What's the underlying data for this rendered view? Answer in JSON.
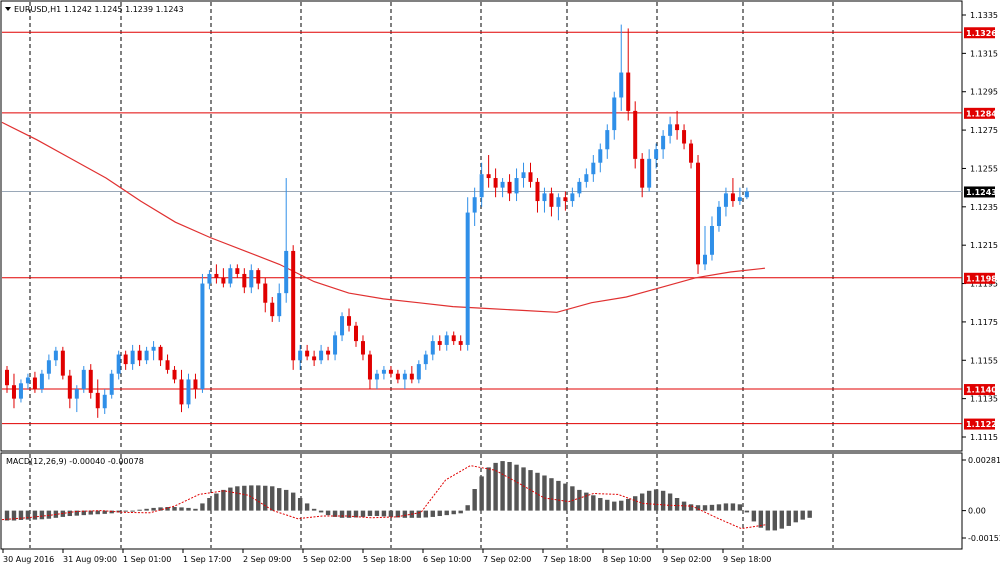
{
  "chart_data": [
    {
      "type": "candlestick",
      "header": {
        "symbol": "EURUSD,H1",
        "values": "1.1242 1.1245 1.1239 1.1243"
      },
      "ylim": [
        1.1108,
        1.1342
      ],
      "price_ticks": [
        "1.1335",
        "1.1315",
        "1.1295",
        "1.1275",
        "1.1255",
        "1.1235",
        "1.1215",
        "1.1195",
        "1.1175",
        "1.1155",
        "1.1135",
        "1.1115"
      ],
      "levels": [
        {
          "label": "1.1326",
          "value": 1.1326,
          "color": "#e00000",
          "style": "solid"
        },
        {
          "label": "1.1284",
          "value": 1.1284,
          "color": "#e00000",
          "style": "solid"
        },
        {
          "label": "1.1198",
          "value": 1.1198,
          "color": "#e00000",
          "style": "solid"
        },
        {
          "label": "1.1140",
          "value": 1.114,
          "color": "#e00000",
          "style": "solid"
        },
        {
          "label": "1.1122",
          "value": 1.1122,
          "color": "#e00000",
          "style": "solid"
        },
        {
          "label": "1.1243",
          "value": 1.1243,
          "color": "#000000",
          "style": "current"
        }
      ],
      "x_ticks": [
        "30 Aug 2016",
        "31 Aug 09:00",
        "1 Sep 01:00",
        "1 Sep 17:00",
        "2 Sep 09:00",
        "5 Sep 02:00",
        "5 Sep 18:00",
        "6 Sep 10:00",
        "7 Sep 02:00",
        "7 Sep 18:00",
        "8 Sep 10:00",
        "9 Sep 02:00",
        "9 Sep 18:00"
      ],
      "colors": {
        "bull": "#2f8fe8",
        "bear": "#e00000",
        "ma": "#e03030"
      },
      "ohlc": [
        [
          1.115,
          1.1152,
          1.1138,
          1.1142
        ],
        [
          1.1142,
          1.1148,
          1.113,
          1.1135
        ],
        [
          1.1135,
          1.1145,
          1.1133,
          1.1143
        ],
        [
          1.1143,
          1.1148,
          1.114,
          1.1146
        ],
        [
          1.1146,
          1.1149,
          1.1138,
          1.114
        ],
        [
          1.114,
          1.115,
          1.1138,
          1.1148
        ],
        [
          1.1148,
          1.1158,
          1.1145,
          1.1155
        ],
        [
          1.1155,
          1.1162,
          1.1152,
          1.116
        ],
        [
          1.116,
          1.1162,
          1.1145,
          1.1147
        ],
        [
          1.1147,
          1.115,
          1.113,
          1.1135
        ],
        [
          1.1135,
          1.1142,
          1.1128,
          1.114
        ],
        [
          1.114,
          1.1152,
          1.1138,
          1.115
        ],
        [
          1.115,
          1.1153,
          1.1135,
          1.1138
        ],
        [
          1.1138,
          1.1145,
          1.1125,
          1.113
        ],
        [
          1.113,
          1.114,
          1.1127,
          1.1137
        ],
        [
          1.1137,
          1.115,
          1.1135,
          1.1148
        ],
        [
          1.1148,
          1.116,
          1.1145,
          1.1158
        ],
        [
          1.1158,
          1.116,
          1.115,
          1.1153
        ],
        [
          1.1153,
          1.1163,
          1.115,
          1.116
        ],
        [
          1.116,
          1.1163,
          1.1152,
          1.1155
        ],
        [
          1.1155,
          1.1162,
          1.1153,
          1.116
        ],
        [
          1.116,
          1.1165,
          1.1155,
          1.1162
        ],
        [
          1.1162,
          1.1163,
          1.1152,
          1.1155
        ],
        [
          1.1155,
          1.1158,
          1.1148,
          1.115
        ],
        [
          1.115,
          1.1152,
          1.1143,
          1.1145
        ],
        [
          1.1145,
          1.115,
          1.1128,
          1.1132
        ],
        [
          1.1132,
          1.1148,
          1.113,
          1.1145
        ],
        [
          1.1145,
          1.1148,
          1.1135,
          1.114
        ],
        [
          1.114,
          1.12,
          1.1138,
          1.1195
        ],
        [
          1.1195,
          1.1202,
          1.1192,
          1.12
        ],
        [
          1.12,
          1.1205,
          1.1195,
          1.1198
        ],
        [
          1.1198,
          1.1203,
          1.1193,
          1.1195
        ],
        [
          1.1195,
          1.1205,
          1.1193,
          1.1203
        ],
        [
          1.1203,
          1.1205,
          1.1198,
          1.12
        ],
        [
          1.12,
          1.1203,
          1.119,
          1.1193
        ],
        [
          1.1193,
          1.1205,
          1.119,
          1.1202
        ],
        [
          1.1202,
          1.1203,
          1.1192,
          1.1195
        ],
        [
          1.1195,
          1.1198,
          1.118,
          1.1185
        ],
        [
          1.1185,
          1.1188,
          1.1175,
          1.1178
        ],
        [
          1.1178,
          1.1195,
          1.1175,
          1.119
        ],
        [
          1.119,
          1.125,
          1.1185,
          1.1212
        ],
        [
          1.1212,
          1.1215,
          1.115,
          1.1155
        ],
        [
          1.1155,
          1.1163,
          1.115,
          1.116
        ],
        [
          1.116,
          1.1163,
          1.1155,
          1.1157
        ],
        [
          1.1157,
          1.116,
          1.1152,
          1.1155
        ],
        [
          1.1155,
          1.1163,
          1.1153,
          1.116
        ],
        [
          1.116,
          1.1162,
          1.1155,
          1.1158
        ],
        [
          1.1158,
          1.117,
          1.1155,
          1.1168
        ],
        [
          1.1168,
          1.118,
          1.1165,
          1.1178
        ],
        [
          1.1178,
          1.1182,
          1.117,
          1.1173
        ],
        [
          1.1173,
          1.1175,
          1.1162,
          1.1165
        ],
        [
          1.1165,
          1.1168,
          1.1155,
          1.1158
        ],
        [
          1.1158,
          1.116,
          1.114,
          1.1145
        ],
        [
          1.1145,
          1.115,
          1.114,
          1.1148
        ],
        [
          1.1148,
          1.1152,
          1.1145,
          1.115
        ],
        [
          1.115,
          1.1152,
          1.1146,
          1.1148
        ],
        [
          1.1148,
          1.115,
          1.1143,
          1.1145
        ],
        [
          1.1145,
          1.115,
          1.114,
          1.1148
        ],
        [
          1.1148,
          1.1152,
          1.1143,
          1.1145
        ],
        [
          1.1145,
          1.1155,
          1.1143,
          1.1153
        ],
        [
          1.1153,
          1.116,
          1.115,
          1.1158
        ],
        [
          1.1158,
          1.1168,
          1.1155,
          1.1165
        ],
        [
          1.1165,
          1.1168,
          1.116,
          1.1163
        ],
        [
          1.1163,
          1.117,
          1.116,
          1.1168
        ],
        [
          1.1168,
          1.117,
          1.1163,
          1.1165
        ],
        [
          1.1165,
          1.1168,
          1.116,
          1.1163
        ],
        [
          1.1163,
          1.124,
          1.116,
          1.1232
        ],
        [
          1.1232,
          1.1245,
          1.1225,
          1.124
        ],
        [
          1.124,
          1.1258,
          1.1235,
          1.1252
        ],
        [
          1.1252,
          1.1262,
          1.1245,
          1.125
        ],
        [
          1.125,
          1.1255,
          1.124,
          1.1245
        ],
        [
          1.1245,
          1.125,
          1.124,
          1.1248
        ],
        [
          1.1248,
          1.1252,
          1.1238,
          1.1242
        ],
        [
          1.1242,
          1.1255,
          1.1238,
          1.125
        ],
        [
          1.125,
          1.1258,
          1.1245,
          1.1253
        ],
        [
          1.1253,
          1.1258,
          1.1245,
          1.1248
        ],
        [
          1.1248,
          1.125,
          1.1232,
          1.1238
        ],
        [
          1.1238,
          1.1245,
          1.1232,
          1.1242
        ],
        [
          1.1242,
          1.1245,
          1.123,
          1.1235
        ],
        [
          1.1235,
          1.1242,
          1.1228,
          1.124
        ],
        [
          1.124,
          1.1243,
          1.1233,
          1.1238
        ],
        [
          1.1238,
          1.1245,
          1.1235,
          1.1242
        ],
        [
          1.1242,
          1.125,
          1.124,
          1.1248
        ],
        [
          1.1248,
          1.1255,
          1.1245,
          1.1252
        ],
        [
          1.1252,
          1.1262,
          1.1248,
          1.1258
        ],
        [
          1.1258,
          1.1268,
          1.1253,
          1.1265
        ],
        [
          1.1265,
          1.1278,
          1.126,
          1.1275
        ],
        [
          1.1275,
          1.1295,
          1.127,
          1.1292
        ],
        [
          1.1292,
          1.133,
          1.1285,
          1.1305
        ],
        [
          1.1305,
          1.1328,
          1.128,
          1.1285
        ],
        [
          1.1285,
          1.129,
          1.1255,
          1.126
        ],
        [
          1.126,
          1.1263,
          1.124,
          1.1245
        ],
        [
          1.1245,
          1.1265,
          1.1243,
          1.126
        ],
        [
          1.126,
          1.1268,
          1.1255,
          1.1265
        ],
        [
          1.1265,
          1.1275,
          1.126,
          1.1272
        ],
        [
          1.1272,
          1.1282,
          1.1268,
          1.1278
        ],
        [
          1.1278,
          1.1285,
          1.127,
          1.1275
        ],
        [
          1.1275,
          1.1278,
          1.1265,
          1.1268
        ],
        [
          1.1268,
          1.127,
          1.1255,
          1.1258
        ],
        [
          1.1258,
          1.1262,
          1.12,
          1.1205
        ],
        [
          1.1205,
          1.1225,
          1.1202,
          1.121
        ],
        [
          1.121,
          1.123,
          1.1207,
          1.1225
        ],
        [
          1.1225,
          1.1238,
          1.1222,
          1.1235
        ],
        [
          1.1235,
          1.1245,
          1.123,
          1.1242
        ],
        [
          1.1242,
          1.125,
          1.1235,
          1.1238
        ],
        [
          1.1238,
          1.1245,
          1.1236,
          1.124
        ],
        [
          1.124,
          1.1245,
          1.1239,
          1.1243
        ]
      ],
      "ma": [
        1.1279,
        1.127,
        1.126,
        1.125,
        1.1238,
        1.1227,
        1.1219,
        1.1212,
        1.1205,
        1.1196,
        1.119,
        1.1187,
        1.1185,
        1.1183,
        1.1182,
        1.1181,
        1.118,
        1.1185,
        1.1188,
        1.1193,
        1.1198,
        1.1201,
        1.1203
      ],
      "ma_label": "",
      "macd": {
        "label": "MACD(12,26,9) -0.00040 -0.00078",
        "ylim": [
          -0.0016,
          0.0029
        ],
        "ticks": [
          "0.00281",
          "0.00",
          "-0.00152"
        ],
        "histogram": [
          -0.00055,
          -0.00055,
          -0.00052,
          -0.0005,
          -0.0005,
          -0.00048,
          -0.00045,
          -0.0004,
          -0.00035,
          -0.0003,
          -0.00028,
          -0.00025,
          -0.00022,
          -0.0002,
          -0.00018,
          -0.00015,
          -0.0001,
          -5e-05,
          0.0,
          5e-05,
          0.0001,
          0.00015,
          0.00018,
          0.0002,
          0.0002,
          0.00018,
          0.00015,
          0.0001,
          0.0004,
          0.0007,
          0.00095,
          0.00115,
          0.00128,
          0.00135,
          0.00138,
          0.0014,
          0.0014,
          0.00138,
          0.00135,
          0.00125,
          0.00115,
          0.001,
          0.0007,
          0.0004,
          0.0001,
          -0.0001,
          -0.00025,
          -0.00035,
          -0.0004,
          -0.0004,
          -0.00038,
          -0.00035,
          -0.0003,
          -0.0003,
          -0.00032,
          -0.00035,
          -0.00038,
          -0.0004,
          -0.0004,
          -0.0004,
          -0.00038,
          -0.00035,
          -0.0003,
          -0.00025,
          -0.0002,
          -0.00015,
          0.0003,
          0.0012,
          0.0019,
          0.0024,
          0.00265,
          0.00275,
          0.0027,
          0.00255,
          0.0024,
          0.00225,
          0.0021,
          0.00195,
          0.0018,
          0.00165,
          0.0015,
          0.00135,
          0.00115,
          0.001,
          0.00085,
          0.0007,
          0.0006,
          0.0005,
          0.00055,
          0.00065,
          0.0008,
          0.00095,
          0.0011,
          0.00118,
          0.0011,
          0.00095,
          0.0007,
          0.0005,
          0.00035,
          0.0003,
          0.0003,
          0.00032,
          0.00035,
          0.0004,
          0.0004,
          0.00035,
          -0.0001,
          -0.0006,
          -0.00095,
          -0.0011,
          -0.0011,
          -0.001,
          -0.00085,
          -0.00065,
          -0.0005,
          -0.0004
        ],
        "signal": [
          -0.0005,
          -0.0004,
          -0.00025,
          -5e-05,
          0.0,
          -0.0001,
          -0.00012,
          0.00025,
          0.0009,
          0.0011,
          0.00085,
          0.0,
          -0.00045,
          -0.0003,
          -0.0003,
          -0.0004,
          -0.00035,
          -0.0001,
          0.0017,
          0.0025,
          0.00225,
          0.0015,
          0.0007,
          0.0005,
          0.00095,
          0.0009,
          0.0004,
          0.0003,
          0.00025,
          -0.0004,
          -0.001,
          -0.00078
        ]
      },
      "title": "",
      "xlabel": "",
      "ylabel": ""
    }
  ]
}
